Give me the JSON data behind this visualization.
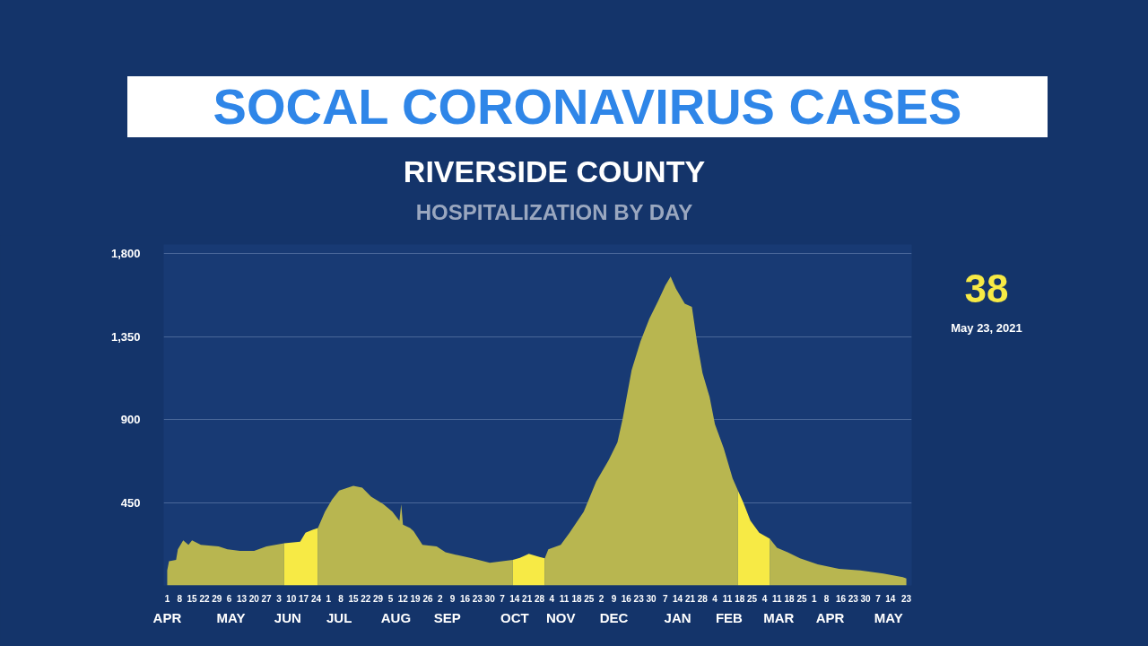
{
  "chart_data": {
    "type": "area",
    "title": "SOCAL CORONAVIRUS CASES",
    "subtitle": "RIVERSIDE COUNTY",
    "annotations": [
      "HOSPITALIZATION BY DAY",
      "38",
      "May 23, 2021"
    ],
    "series": [
      {
        "color": "#b8b650",
        "x": [
          "2020-04-01",
          "2020-04-02",
          "2020-04-06",
          "2020-04-07",
          "2020-04-10",
          "2020-04-13",
          "2020-04-15",
          "2020-04-20",
          "2020-04-30",
          "2020-05-05",
          "2020-05-12",
          "2020-05-20",
          "2020-05-27",
          "2020-06-01",
          "2020-06-06",
          "2020-06-15",
          "2020-06-25",
          "2020-06-29",
          "2020-07-03",
          "2020-07-07",
          "2020-07-15",
          "2020-07-20",
          "2020-07-25",
          "2020-08-01",
          "2020-08-06",
          "2020-08-10",
          "2020-08-11",
          "2020-08-12",
          "2020-08-16",
          "2020-08-18",
          "2020-08-23",
          "2020-08-31",
          "2020-09-05",
          "2020-09-12",
          "2020-09-20",
          "2020-09-30",
          "2020-10-07",
          "2020-10-13",
          "2020-10-22",
          "2020-10-31",
          "2020-11-02",
          "2020-11-09",
          "2020-11-14",
          "2020-11-22",
          "2020-11-29",
          "2020-12-06",
          "2020-12-11",
          "2020-12-14",
          "2020-12-19",
          "2020-12-24",
          "2020-12-29",
          "2021-01-03",
          "2021-01-07",
          "2021-01-10",
          "2021-01-13",
          "2021-01-18",
          "2021-01-22",
          "2021-01-25",
          "2021-01-28",
          "2021-02-01",
          "2021-02-04",
          "2021-02-09",
          "2021-02-14",
          "2021-02-17",
          "2021-02-24",
          "2021-03-07",
          "2021-03-11",
          "2021-03-17",
          "2021-03-24",
          "2021-04-03",
          "2021-04-15",
          "2021-04-27",
          "2021-05-10",
          "2021-05-21",
          "2021-05-23"
        ],
        "values": [
          82,
          131,
          139,
          196,
          245,
          220,
          245,
          220,
          212,
          196,
          188,
          188,
          212,
          220,
          229,
          null,
          311,
          400,
          466,
          515,
          540,
          531,
          482,
          441,
          400,
          351,
          441,
          330,
          311,
          294,
          220,
          212,
          180,
          164,
          147,
          123,
          131,
          139,
          null,
          147,
          196,
          220,
          286,
          400,
          564,
          679,
          777,
          907,
          1169,
          1324,
          1447,
          1545,
          1627,
          1676,
          1610,
          1529,
          1512,
          1316,
          1153,
          1022,
          875,
          744,
          580,
          515,
          null,
          253,
          204,
          180,
          147,
          114,
          90,
          82,
          65,
          45,
          38
        ]
      },
      {
        "color": "#f7ea45",
        "x": [
          "2020-06-06",
          "2020-06-15",
          "2020-06-18",
          "2020-06-22",
          "2020-06-25",
          "2020-08-01",
          "2020-10-13",
          "2020-10-17",
          "2020-10-22",
          "2020-10-28",
          "2020-10-31",
          "2021-01-01",
          "2021-02-17",
          "2021-02-20",
          "2021-02-24",
          "2021-03-01",
          "2021-03-07"
        ],
        "values": [
          229,
          237,
          286,
          302,
          311,
          null,
          139,
          150,
          172,
          155,
          147,
          null,
          515,
          450,
          352,
          286,
          253
        ]
      }
    ],
    "xlim": [
      "2020-03-30",
      "2021-05-26"
    ],
    "xticks": [
      {
        "value": "2020-04-01",
        "label": "1"
      },
      {
        "value": "2020-04-08",
        "label": "8"
      },
      {
        "value": "2020-04-15",
        "label": "15"
      },
      {
        "value": "2020-04-22",
        "label": "22"
      },
      {
        "value": "2020-04-29",
        "label": "29"
      },
      {
        "value": "2020-05-06",
        "label": "6"
      },
      {
        "value": "2020-05-13",
        "label": "13"
      },
      {
        "value": "2020-05-20",
        "label": "20"
      },
      {
        "value": "2020-05-27",
        "label": "27"
      },
      {
        "value": "2020-06-03",
        "label": "3"
      },
      {
        "value": "2020-06-10",
        "label": "10"
      },
      {
        "value": "2020-06-17",
        "label": "17"
      },
      {
        "value": "2020-06-24",
        "label": "24"
      },
      {
        "value": "2020-07-01",
        "label": "1"
      },
      {
        "value": "2020-07-08",
        "label": "8"
      },
      {
        "value": "2020-07-15",
        "label": "15"
      },
      {
        "value": "2020-07-22",
        "label": "22"
      },
      {
        "value": "2020-07-29",
        "label": "29"
      },
      {
        "value": "2020-08-05",
        "label": "5"
      },
      {
        "value": "2020-08-12",
        "label": "12"
      },
      {
        "value": "2020-08-19",
        "label": "19"
      },
      {
        "value": "2020-08-26",
        "label": "26"
      },
      {
        "value": "2020-09-02",
        "label": "2"
      },
      {
        "value": "2020-09-09",
        "label": "9"
      },
      {
        "value": "2020-09-16",
        "label": "16"
      },
      {
        "value": "2020-09-23",
        "label": "23"
      },
      {
        "value": "2020-09-30",
        "label": "30"
      },
      {
        "value": "2020-10-07",
        "label": "7"
      },
      {
        "value": "2020-10-14",
        "label": "14"
      },
      {
        "value": "2020-10-21",
        "label": "21"
      },
      {
        "value": "2020-10-28",
        "label": "28"
      },
      {
        "value": "2020-11-04",
        "label": "4"
      },
      {
        "value": "2020-11-11",
        "label": "11"
      },
      {
        "value": "2020-11-18",
        "label": "18"
      },
      {
        "value": "2020-11-25",
        "label": "25"
      },
      {
        "value": "2020-12-02",
        "label": "2"
      },
      {
        "value": "2020-12-09",
        "label": "9"
      },
      {
        "value": "2020-12-16",
        "label": "16"
      },
      {
        "value": "2020-12-23",
        "label": "23"
      },
      {
        "value": "2020-12-30",
        "label": "30"
      },
      {
        "value": "2021-01-07",
        "label": "7"
      },
      {
        "value": "2021-01-14",
        "label": "14"
      },
      {
        "value": "2021-01-21",
        "label": "21"
      },
      {
        "value": "2021-01-28",
        "label": "28"
      },
      {
        "value": "2021-02-04",
        "label": "4"
      },
      {
        "value": "2021-02-11",
        "label": "11"
      },
      {
        "value": "2021-02-18",
        "label": "18"
      },
      {
        "value": "2021-02-25",
        "label": "25"
      },
      {
        "value": "2021-03-04",
        "label": "4"
      },
      {
        "value": "2021-03-11",
        "label": "11"
      },
      {
        "value": "2021-03-18",
        "label": "18"
      },
      {
        "value": "2021-03-25",
        "label": "25"
      },
      {
        "value": "2021-04-01",
        "label": "1"
      },
      {
        "value": "2021-04-08",
        "label": "8"
      },
      {
        "value": "2021-04-16",
        "label": "16"
      },
      {
        "value": "2021-04-23",
        "label": "23"
      },
      {
        "value": "2021-04-30",
        "label": "30"
      },
      {
        "value": "2021-05-07",
        "label": "7"
      },
      {
        "value": "2021-05-14",
        "label": "14"
      },
      {
        "value": "2021-05-23",
        "label": "23"
      }
    ],
    "x2lim": [
      "2020-03-30",
      "2021-05-26"
    ],
    "x2ticks": [
      {
        "value": "2020-04-01",
        "label": "APR"
      },
      {
        "value": "2020-05-07",
        "label": "MAY"
      },
      {
        "value": "2020-06-08",
        "label": "JUN"
      },
      {
        "value": "2020-07-07",
        "label": "JUL"
      },
      {
        "value": "2020-08-08",
        "label": "AUG"
      },
      {
        "value": "2020-09-06",
        "label": "SEP"
      },
      {
        "value": "2020-10-14",
        "label": "OCT"
      },
      {
        "value": "2020-11-09",
        "label": "NOV"
      },
      {
        "value": "2020-12-09",
        "label": "DEC"
      },
      {
        "value": "2021-01-14",
        "label": "JAN"
      },
      {
        "value": "2021-02-12",
        "label": "FEB"
      },
      {
        "value": "2021-03-12",
        "label": "MAR"
      },
      {
        "value": "2021-04-10",
        "label": "APR"
      },
      {
        "value": "2021-05-13",
        "label": "MAY"
      }
    ],
    "ylim": [
      0,
      1850
    ],
    "yticks": [
      450,
      900,
      {
        "value": 1350,
        "label": "1,350"
      },
      {
        "value": 1800,
        "label": "1,800"
      }
    ],
    "grid": "y"
  }
}
